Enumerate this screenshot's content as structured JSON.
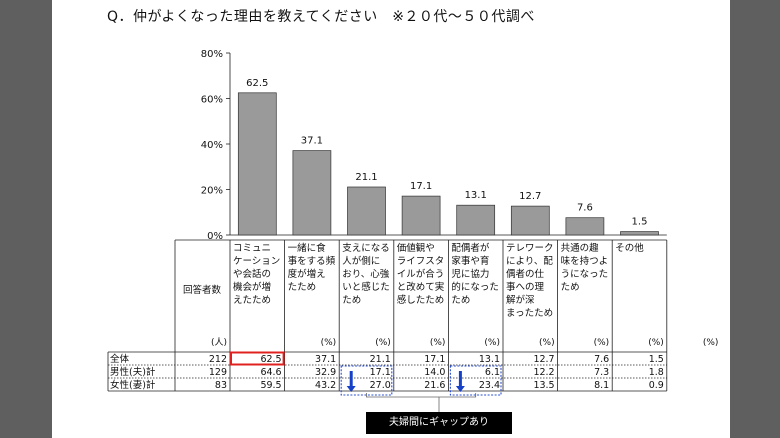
{
  "question": "Q．仲がよくなった理由を教えてください　※２０代～５０代調べ",
  "chart_data": {
    "type": "bar",
    "yticks": [
      "80%",
      "60%",
      "40%",
      "20%",
      "0%"
    ],
    "ylim": [
      0,
      80
    ],
    "categories": [
      [
        "コミュニ",
        "ケーション",
        "や会話の",
        "機会が増",
        "えたため"
      ],
      [
        "一緒に食",
        "事をする頻",
        "度が増え",
        "たため"
      ],
      [
        "支えになる",
        "人が側に",
        "おり、心強",
        "いと感じた",
        "ため"
      ],
      [
        "価値観や",
        "ライフスタ",
        "イルが合う",
        "と改めて実",
        "感したため"
      ],
      [
        "配偶者が",
        "家事や育",
        "児に協力",
        "的になった",
        "ため"
      ],
      [
        "テレワーク",
        "により、配",
        "偶者の仕",
        "事への理",
        "解が深",
        "まったため"
      ],
      [
        "共通の趣",
        "味を持つよ",
        "うになった",
        "ため"
      ],
      [
        "その他"
      ]
    ],
    "values": [
      62.5,
      37.1,
      21.1,
      17.1,
      13.1,
      12.7,
      7.6,
      1.5
    ],
    "value_labels": [
      "62.5",
      "37.1",
      "21.1",
      "17.1",
      "13.1",
      "12.7",
      "7.6",
      "1.5"
    ],
    "bar_color": "#9a9a9a"
  },
  "table": {
    "header_label": "回答者数",
    "units": [
      "(人)",
      "(%)",
      "(%)",
      "(%)",
      "(%)",
      "(%)",
      "(%)",
      "(%)",
      "(%)"
    ],
    "rows": [
      {
        "label": "全体",
        "n": "212",
        "values": [
          "62.5",
          "37.1",
          "21.1",
          "17.1",
          "13.1",
          "12.7",
          "7.6",
          "1.5"
        ]
      },
      {
        "label": "男性(夫)計",
        "n": "129",
        "values": [
          "64.6",
          "32.9",
          "17.1",
          "14.0",
          "6.1",
          "12.2",
          "7.3",
          "1.8"
        ]
      },
      {
        "label": "女性(妻)計",
        "n": "83",
        "values": [
          "59.5",
          "43.2",
          "27.0",
          "21.6",
          "23.4",
          "13.5",
          "8.1",
          "0.9"
        ]
      }
    ]
  },
  "callout": "夫婦間にギャップあり",
  "colors": {
    "highlight": "#e0201f",
    "arrow": "#1540c8",
    "dashed": "#2a4fd0"
  }
}
